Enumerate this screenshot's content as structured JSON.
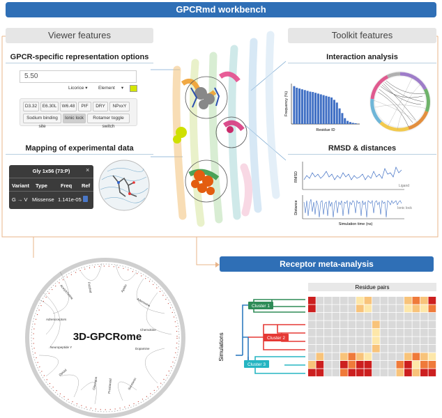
{
  "header": {
    "title": "GPCRmd workbench"
  },
  "viewer": {
    "title": "Viewer features",
    "representation": {
      "title": "GPCR-specific representation options",
      "input_value": "5.50",
      "style_select": "Licorice",
      "color_select": "Element",
      "swatch_color": "#d4e600",
      "buttons": [
        "D3.32",
        "E6.30L",
        "W6.48",
        "PIF",
        "DRY",
        "NPxxY",
        "Sodium binding site",
        "Ionic lock",
        "Rotamer toggle switch"
      ]
    },
    "mapping": {
      "title": "Mapping of experimental data",
      "popup": {
        "title": "Gly 1x56 (73:P)",
        "headers": [
          "Variant",
          "Type",
          "Freq",
          "Ref"
        ],
        "row": [
          "G → V",
          "Missense",
          "1.141e-05"
        ]
      }
    }
  },
  "toolkit": {
    "title": "Toolkit features",
    "interaction": {
      "title": "Interaction analysis",
      "ylabel": "Frequency (%)",
      "xlabel": "Residue ID"
    },
    "rmsd": {
      "title": "RMSD & distances",
      "top_ylabel": "RMSD",
      "top_tag": "Ligand",
      "bottom_ylabel": "Distance",
      "bottom_tag": "Ionic lock",
      "xlabel": "Simulation time (ns)"
    }
  },
  "gpcrome": {
    "label": "3D-GPCRome",
    "families": [
      "Apelin",
      "Adrenoceptors",
      "Acetylcholine",
      "Neuropeptide Y",
      "Opioid",
      "Chemokine",
      "Adenosine",
      "Dopamine",
      "Glucagon",
      "Prostanoid",
      "Serotonin",
      "Frizzled"
    ]
  },
  "meta": {
    "title": "Receptor meta-analysis",
    "heatmap_title": "Residue pairs",
    "ylabel": "Simulations",
    "clusters": [
      "Cluster 1",
      "Cluster 2",
      "Cluster 3"
    ],
    "cluster_colors": [
      "#2e8b57",
      "#e53935",
      "#26b5c2"
    ],
    "heatmap_palette": [
      "#d9d9d9",
      "#fde7a9",
      "#f8c37a",
      "#ef7a3a",
      "#cc1f1f"
    ]
  },
  "chart_data": [
    {
      "type": "bar",
      "title": "Interaction analysis",
      "xlabel": "Residue ID",
      "ylabel": "Frequency (%)",
      "values": [
        97,
        93,
        91,
        89,
        87,
        85,
        83,
        82,
        80,
        78,
        76,
        74,
        72,
        70,
        68,
        62,
        55,
        40,
        28,
        15,
        8,
        5,
        3,
        2
      ]
    },
    {
      "type": "heatmap",
      "title": "Residue pairs",
      "ylabel": "Simulations",
      "matrix": [
        [
          4,
          0,
          0,
          0,
          0,
          0,
          1,
          2,
          0,
          0,
          0,
          0,
          2,
          3,
          2,
          4
        ],
        [
          4,
          0,
          0,
          0,
          0,
          0,
          2,
          1,
          0,
          0,
          0,
          0,
          1,
          2,
          1,
          3
        ],
        [
          0,
          0,
          0,
          0,
          0,
          0,
          0,
          0,
          0,
          0,
          0,
          0,
          0,
          0,
          0,
          0
        ],
        [
          0,
          0,
          0,
          0,
          0,
          0,
          0,
          0,
          2,
          0,
          0,
          0,
          0,
          0,
          0,
          0
        ],
        [
          0,
          0,
          0,
          0,
          0,
          0,
          0,
          0,
          1,
          0,
          0,
          0,
          0,
          0,
          0,
          0
        ],
        [
          0,
          0,
          0,
          0,
          0,
          0,
          0,
          0,
          1,
          0,
          0,
          0,
          0,
          0,
          0,
          0
        ],
        [
          0,
          0,
          0,
          0,
          0,
          0,
          0,
          0,
          2,
          0,
          0,
          0,
          0,
          0,
          0,
          0
        ],
        [
          0,
          2,
          0,
          0,
          2,
          3,
          2,
          1,
          0,
          0,
          0,
          0,
          2,
          3,
          2,
          1
        ],
        [
          2,
          4,
          0,
          0,
          4,
          3,
          4,
          4,
          0,
          0,
          0,
          3,
          4,
          1,
          3,
          3
        ],
        [
          4,
          4,
          0,
          0,
          3,
          4,
          4,
          4,
          0,
          0,
          0,
          2,
          4,
          2,
          4,
          4
        ]
      ]
    }
  ]
}
